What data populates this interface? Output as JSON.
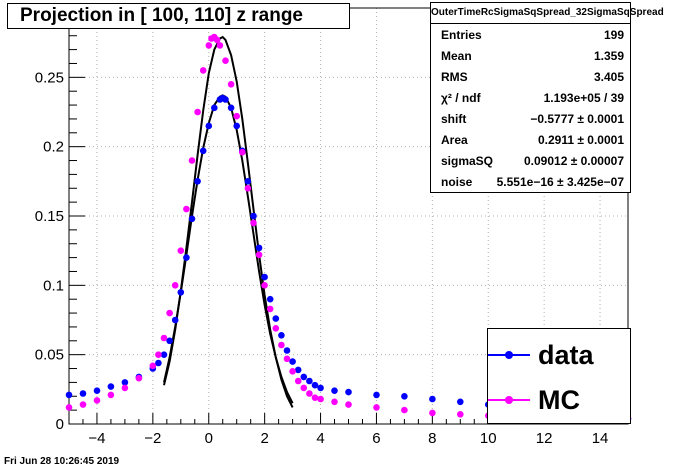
{
  "title": "Projection in [ 100, 110] z range",
  "stats": {
    "name": "OuterTimeRcSigmaSqSpread_32SigmaSqSpread",
    "rows": [
      {
        "label": "Entries",
        "value": "199"
      },
      {
        "label": "Mean",
        "value": "1.359"
      },
      {
        "label": "RMS",
        "value": "3.405"
      },
      {
        "label": "χ² / ndf",
        "value": "1.193e+05 / 39"
      },
      {
        "label": "shift",
        "value": "−0.5777 ± 0.0001"
      },
      {
        "label": "Area",
        "value": "0.2911 ± 0.0001"
      },
      {
        "label": "sigmaSQ",
        "value": "0.09012 ± 0.00007"
      },
      {
        "label": "noise",
        "value": "5.551e−16 ± 3.425e−07"
      }
    ]
  },
  "legend": [
    {
      "label": "data",
      "color": "#0000ff"
    },
    {
      "label": "MC",
      "color": "#ff00ff"
    }
  ],
  "footer": "Fri Jun 28 10:26:45 2019",
  "chart_data": {
    "type": "scatter",
    "xlim": [
      -5,
      15
    ],
    "ylim": [
      0,
      0.3
    ],
    "xticks": [
      -4,
      -2,
      0,
      2,
      4,
      6,
      8,
      10,
      12,
      14
    ],
    "yticks": [
      0.05,
      0.1,
      0.15,
      0.2,
      0.25
    ],
    "ytick_labels": [
      "0.05",
      "0.1",
      "0.15",
      "0.2",
      "0.25"
    ],
    "grid": true,
    "series": [
      {
        "name": "data",
        "color": "#0000ff",
        "x": [
          -5,
          -4.5,
          -4,
          -3.5,
          -3,
          -2.5,
          -2,
          -1.8,
          -1.6,
          -1.4,
          -1.2,
          -1,
          -0.8,
          -0.6,
          -0.4,
          -0.2,
          0,
          0.2,
          0.4,
          0.5,
          0.6,
          0.8,
          1,
          1.2,
          1.4,
          1.6,
          1.8,
          2,
          2.2,
          2.4,
          2.6,
          2.8,
          3,
          3.2,
          3.4,
          3.6,
          3.8,
          4,
          4.5,
          5,
          6,
          7,
          8,
          9,
          10,
          11,
          12,
          13,
          14,
          15
        ],
        "y": [
          0.021,
          0.022,
          0.024,
          0.027,
          0.03,
          0.034,
          0.04,
          0.044,
          0.05,
          0.06,
          0.075,
          0.095,
          0.12,
          0.148,
          0.175,
          0.197,
          0.215,
          0.228,
          0.234,
          0.235,
          0.234,
          0.228,
          0.215,
          0.197,
          0.175,
          0.15,
          0.127,
          0.106,
          0.09,
          0.076,
          0.064,
          0.053,
          0.045,
          0.039,
          0.034,
          0.031,
          0.028,
          0.026,
          0.024,
          0.023,
          0.021,
          0.02,
          0.018,
          0.016,
          0.014,
          0.012,
          0.01,
          0.008,
          0.006,
          0.004
        ]
      },
      {
        "name": "MC",
        "color": "#ff00ff",
        "x": [
          -5,
          -4.5,
          -4,
          -3.5,
          -3,
          -2.5,
          -2,
          -1.8,
          -1.6,
          -1.4,
          -1.2,
          -1,
          -0.8,
          -0.6,
          -0.4,
          -0.2,
          0,
          0.1,
          0.2,
          0.3,
          0.4,
          0.6,
          0.8,
          1,
          1.2,
          1.4,
          1.6,
          1.8,
          2,
          2.2,
          2.4,
          2.6,
          2.8,
          3,
          3.2,
          3.4,
          3.6,
          3.8,
          4,
          4.5,
          5,
          6,
          7,
          8,
          9,
          10,
          11,
          12,
          13,
          14,
          15
        ],
        "y": [
          0.012,
          0.014,
          0.017,
          0.021,
          0.026,
          0.033,
          0.042,
          0.05,
          0.062,
          0.08,
          0.1,
          0.125,
          0.155,
          0.19,
          0.225,
          0.255,
          0.273,
          0.278,
          0.279,
          0.277,
          0.273,
          0.262,
          0.245,
          0.222,
          0.196,
          0.17,
          0.145,
          0.122,
          0.1,
          0.083,
          0.069,
          0.057,
          0.047,
          0.038,
          0.031,
          0.026,
          0.022,
          0.019,
          0.018,
          0.016,
          0.014,
          0.012,
          0.01,
          0.008,
          0.007,
          0.006,
          0.006,
          0.005,
          0.005,
          0.005,
          0.004
        ]
      }
    ],
    "fits": [
      {
        "series": "data",
        "color": "#000000",
        "x": [
          -1.6,
          -1.4,
          -1.2,
          -1,
          -0.8,
          -0.6,
          -0.4,
          -0.2,
          0,
          0.2,
          0.4,
          0.5,
          0.6,
          0.8,
          1,
          1.2,
          1.4,
          1.6,
          1.8,
          2,
          2.2,
          2.4,
          2.6,
          2.8,
          3
        ],
        "y": [
          0.03,
          0.048,
          0.07,
          0.095,
          0.122,
          0.15,
          0.176,
          0.199,
          0.217,
          0.23,
          0.236,
          0.237,
          0.236,
          0.228,
          0.212,
          0.19,
          0.164,
          0.137,
          0.11,
          0.086,
          0.065,
          0.048,
          0.034,
          0.023,
          0.015
        ]
      },
      {
        "series": "MC",
        "color": "#000000",
        "x": [
          -1.6,
          -1.4,
          -1.2,
          -1,
          -0.8,
          -0.6,
          -0.4,
          -0.2,
          0,
          0.2,
          0.4,
          0.5,
          0.6,
          0.8,
          1,
          1.2,
          1.4,
          1.6,
          1.8,
          2,
          2.2,
          2.4,
          2.6,
          2.8,
          3
        ],
        "y": [
          0.028,
          0.045,
          0.068,
          0.096,
          0.127,
          0.16,
          0.194,
          0.226,
          0.253,
          0.27,
          0.278,
          0.279,
          0.277,
          0.266,
          0.247,
          0.22,
          0.188,
          0.155,
          0.122,
          0.093,
          0.068,
          0.048,
          0.032,
          0.02,
          0.012
        ]
      }
    ]
  }
}
